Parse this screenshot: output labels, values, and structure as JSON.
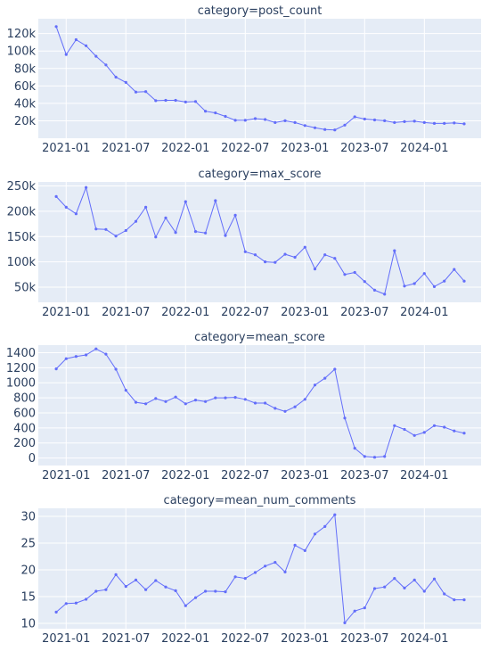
{
  "chart_data": [
    {
      "type": "line",
      "title": "category=post_count",
      "x": [
        "2020-12",
        "2021-01",
        "2021-02",
        "2021-03",
        "2021-04",
        "2021-05",
        "2021-06",
        "2021-07",
        "2021-08",
        "2021-09",
        "2021-10",
        "2021-11",
        "2021-12",
        "2022-01",
        "2022-02",
        "2022-03",
        "2022-04",
        "2022-05",
        "2022-06",
        "2022-07",
        "2022-08",
        "2022-09",
        "2022-10",
        "2022-11",
        "2022-12",
        "2023-01",
        "2023-02",
        "2023-03",
        "2023-04",
        "2023-05",
        "2023-06",
        "2023-07",
        "2023-08",
        "2023-09",
        "2023-10",
        "2023-11",
        "2023-12",
        "2024-01",
        "2024-02",
        "2024-03",
        "2024-04",
        "2024-05"
      ],
      "y": [
        128000,
        96000,
        113000,
        106000,
        94000,
        84000,
        70000,
        64000,
        53000,
        53500,
        43000,
        43500,
        43500,
        41500,
        42000,
        31000,
        29000,
        25000,
        20500,
        20500,
        22500,
        21500,
        18000,
        20000,
        18000,
        14500,
        12000,
        10000,
        9500,
        15000,
        24500,
        22000,
        21000,
        20000,
        18000,
        19000,
        19500,
        18000,
        17000,
        17000,
        17500,
        16500
      ],
      "ylim": [
        0,
        137000
      ],
      "yticks": [
        20000,
        40000,
        60000,
        80000,
        100000,
        120000
      ],
      "ytick_labels": [
        "20k",
        "40k",
        "60k",
        "80k",
        "100k",
        "120k"
      ],
      "xticks": [
        "2021-01",
        "2021-07",
        "2022-01",
        "2022-07",
        "2023-01",
        "2023-07",
        "2024-01"
      ],
      "xtick_labels": [
        "2021-01",
        "2021-07",
        "2022-01",
        "2022-07",
        "2023-01",
        "2023-07",
        "2024-01"
      ],
      "color": "#636efa"
    },
    {
      "type": "line",
      "title": "category=max_score",
      "x": [
        "2020-12",
        "2021-01",
        "2021-02",
        "2021-03",
        "2021-04",
        "2021-05",
        "2021-06",
        "2021-07",
        "2021-08",
        "2021-09",
        "2021-10",
        "2021-11",
        "2021-12",
        "2022-01",
        "2022-02",
        "2022-03",
        "2022-04",
        "2022-05",
        "2022-06",
        "2022-07",
        "2022-08",
        "2022-09",
        "2022-10",
        "2022-11",
        "2022-12",
        "2023-01",
        "2023-02",
        "2023-03",
        "2023-04",
        "2023-05",
        "2023-06",
        "2023-07",
        "2023-08",
        "2023-09",
        "2023-10",
        "2023-11",
        "2023-12",
        "2024-01",
        "2024-02",
        "2024-03",
        "2024-04",
        "2024-05"
      ],
      "y": [
        229000,
        208000,
        195000,
        247000,
        165000,
        164000,
        151000,
        162000,
        180000,
        208000,
        149000,
        187000,
        158000,
        219000,
        160000,
        157000,
        221000,
        152000,
        192000,
        120000,
        114000,
        100000,
        99000,
        115000,
        109000,
        129000,
        86000,
        114000,
        107000,
        75000,
        79000,
        61000,
        44000,
        36000,
        122000,
        52000,
        57000,
        77000,
        51000,
        62000,
        85000,
        62000
      ],
      "ylim": [
        20000,
        258000
      ],
      "yticks": [
        50000,
        100000,
        150000,
        200000,
        250000
      ],
      "ytick_labels": [
        "50k",
        "100k",
        "150k",
        "200k",
        "250k"
      ],
      "xticks": [
        "2021-01",
        "2021-07",
        "2022-01",
        "2022-07",
        "2023-01",
        "2023-07",
        "2024-01"
      ],
      "xtick_labels": [
        "2021-01",
        "2021-07",
        "2022-01",
        "2022-07",
        "2023-01",
        "2023-07",
        "2024-01"
      ],
      "color": "#636efa"
    },
    {
      "type": "line",
      "title": "category=mean_score",
      "x": [
        "2020-12",
        "2021-01",
        "2021-02",
        "2021-03",
        "2021-04",
        "2021-05",
        "2021-06",
        "2021-07",
        "2021-08",
        "2021-09",
        "2021-10",
        "2021-11",
        "2021-12",
        "2022-01",
        "2022-02",
        "2022-03",
        "2022-04",
        "2022-05",
        "2022-06",
        "2022-07",
        "2022-08",
        "2022-09",
        "2022-10",
        "2022-11",
        "2022-12",
        "2023-01",
        "2023-02",
        "2023-03",
        "2023-04",
        "2023-05",
        "2023-06",
        "2023-07",
        "2023-08",
        "2023-09",
        "2023-10",
        "2023-11",
        "2023-12",
        "2024-01",
        "2024-02",
        "2024-03",
        "2024-04",
        "2024-05"
      ],
      "y": [
        1185,
        1320,
        1350,
        1370,
        1450,
        1380,
        1180,
        900,
        740,
        720,
        790,
        750,
        810,
        720,
        770,
        750,
        800,
        800,
        805,
        780,
        730,
        730,
        660,
        620,
        680,
        780,
        970,
        1060,
        1180,
        530,
        130,
        20,
        10,
        20,
        430,
        380,
        300,
        340,
        430,
        410,
        360,
        330
      ],
      "ylim": [
        -100,
        1500
      ],
      "yticks": [
        0,
        200,
        400,
        600,
        800,
        1000,
        1200,
        1400
      ],
      "ytick_labels": [
        "0",
        "200",
        "400",
        "600",
        "800",
        "1000",
        "1200",
        "1400"
      ],
      "xticks": [
        "2021-01",
        "2021-07",
        "2022-01",
        "2022-07",
        "2023-01",
        "2023-07",
        "2024-01"
      ],
      "xtick_labels": [
        "2021-01",
        "2021-07",
        "2022-01",
        "2022-07",
        "2023-01",
        "2023-07",
        "2024-01"
      ],
      "color": "#636efa"
    },
    {
      "type": "line",
      "title": "category=mean_num_comments",
      "x": [
        "2020-12",
        "2021-01",
        "2021-02",
        "2021-03",
        "2021-04",
        "2021-05",
        "2021-06",
        "2021-07",
        "2021-08",
        "2021-09",
        "2021-10",
        "2021-11",
        "2021-12",
        "2022-01",
        "2022-02",
        "2022-03",
        "2022-04",
        "2022-05",
        "2022-06",
        "2022-07",
        "2022-08",
        "2022-09",
        "2022-10",
        "2022-11",
        "2022-12",
        "2023-01",
        "2023-02",
        "2023-03",
        "2023-04",
        "2023-05",
        "2023-06",
        "2023-07",
        "2023-08",
        "2023-09",
        "2023-10",
        "2023-11",
        "2023-12",
        "2024-01",
        "2024-02",
        "2024-03",
        "2024-04",
        "2024-05"
      ],
      "y": [
        12.1,
        13.7,
        13.8,
        14.5,
        16.0,
        16.3,
        19.1,
        16.9,
        18.1,
        16.3,
        18.0,
        16.8,
        16.1,
        13.3,
        14.8,
        16.0,
        16.0,
        15.9,
        18.7,
        18.4,
        19.5,
        20.7,
        21.4,
        19.6,
        24.6,
        23.6,
        26.7,
        28.1,
        30.3,
        10.1,
        12.3,
        12.9,
        16.5,
        16.8,
        18.4,
        16.6,
        18.1,
        16.0,
        18.3,
        15.5,
        14.4,
        14.4
      ],
      "ylim": [
        9,
        31.5
      ],
      "yticks": [
        10,
        15,
        20,
        25,
        30
      ],
      "ytick_labels": [
        "10",
        "15",
        "20",
        "25",
        "30"
      ],
      "xticks": [
        "2021-01",
        "2021-07",
        "2022-01",
        "2022-07",
        "2023-01",
        "2023-07",
        "2024-01"
      ],
      "xtick_labels": [
        "2021-01",
        "2021-07",
        "2022-01",
        "2022-07",
        "2023-01",
        "2023-07",
        "2024-01"
      ],
      "color": "#636efa"
    }
  ]
}
